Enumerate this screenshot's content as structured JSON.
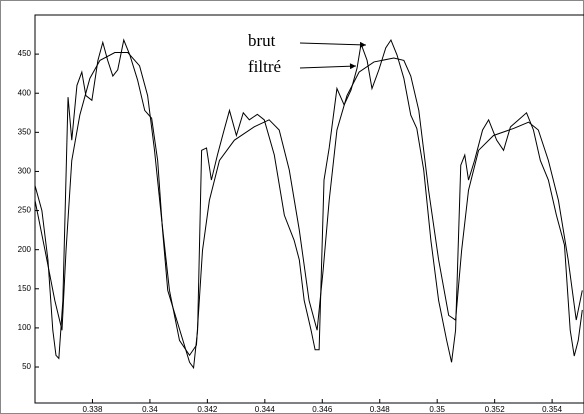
{
  "chart_data": {
    "type": "line",
    "xlim": [
      0.336,
      0.35511
    ],
    "ylim": [
      4,
      500
    ],
    "xticks": [
      0.338,
      0.34,
      0.342,
      0.344,
      0.346,
      0.348,
      0.35,
      0.352,
      0.354
    ],
    "yticks": [
      50,
      100,
      150,
      200,
      250,
      300,
      350,
      400,
      450
    ],
    "series": [
      {
        "name": "brut",
        "color": "#000000",
        "x": [
          0.336,
          0.33624,
          0.33645,
          0.33662,
          0.33673,
          0.33683,
          0.33697,
          0.33715,
          0.33728,
          0.33746,
          0.33763,
          0.33777,
          0.33798,
          0.33819,
          0.33836,
          0.33853,
          0.33871,
          0.33888,
          0.33909,
          0.3393,
          0.33957,
          0.33982,
          0.34006,
          0.34027,
          0.34044,
          0.34062,
          0.34138,
          0.34152,
          0.34166,
          0.3418,
          0.34197,
          0.34214,
          0.34235,
          0.34256,
          0.34277,
          0.34301,
          0.34325,
          0.34346,
          0.34374,
          0.34398,
          0.34433,
          0.34468,
          0.34502,
          0.3452,
          0.34537,
          0.34561,
          0.34575,
          0.34589,
          0.34606,
          0.34624,
          0.34651,
          0.34676,
          0.347,
          0.34721,
          0.34735,
          0.34756,
          0.34773,
          0.34797,
          0.34821,
          0.34839,
          0.3486,
          0.34884,
          0.34908,
          0.34929,
          0.34953,
          0.34978,
          0.35005,
          0.35033,
          0.3505,
          0.35064,
          0.35082,
          0.35096,
          0.35109,
          0.3513,
          0.35158,
          0.35179,
          0.35207,
          0.35231,
          0.35255,
          0.35283,
          0.35311,
          0.35335,
          0.35359,
          0.35387,
          0.35415,
          0.35443,
          0.35463,
          0.35477,
          0.35491,
          0.35505
        ],
        "values": [
          282,
          250,
          187,
          97,
          65,
          61,
          135,
          395,
          340,
          410,
          427,
          397,
          391,
          442,
          465,
          442,
          422,
          430,
          468,
          449,
          417,
          378,
          368,
          314,
          225,
          148,
          56,
          49,
          97,
          327,
          330,
          289,
          321,
          350,
          378,
          346,
          375,
          366,
          373,
          366,
          321,
          244,
          212,
          187,
          135,
          97,
          72,
          72,
          289,
          330,
          406,
          385,
          404,
          432,
          463,
          442,
          406,
          430,
          458,
          468,
          449,
          419,
          372,
          355,
          302,
          212,
          135,
          84,
          56,
          97,
          308,
          321,
          289,
          314,
          353,
          366,
          340,
          327,
          357,
          366,
          375,
          353,
          314,
          289,
          244,
          206,
          97,
          64,
          84,
          123
        ]
      },
      {
        "name": "filtré",
        "color": "#000000",
        "x": [
          0.336,
          0.33635,
          0.33669,
          0.33694,
          0.33708,
          0.33728,
          0.33756,
          0.33791,
          0.33826,
          0.33878,
          0.33923,
          0.33964,
          0.33992,
          0.34016,
          0.34041,
          0.34068,
          0.34103,
          0.34138,
          0.34162,
          0.34183,
          0.34207,
          0.34242,
          0.34294,
          0.34363,
          0.34415,
          0.3445,
          0.34485,
          0.3452,
          0.34554,
          0.34582,
          0.34603,
          0.34624,
          0.34651,
          0.34686,
          0.34728,
          0.3478,
          0.34849,
          0.34884,
          0.34908,
          0.34936,
          0.3497,
          0.35005,
          0.3504,
          0.35064,
          0.35085,
          0.35109,
          0.35144,
          0.35196,
          0.35266,
          0.35318,
          0.35352,
          0.35387,
          0.35422,
          0.35456,
          0.35484,
          0.35505
        ],
        "values": [
          263,
          199,
          135,
          97,
          199,
          314,
          372,
          419,
          442,
          452,
          452,
          435,
          397,
          327,
          238,
          148,
          84,
          65,
          78,
          199,
          263,
          314,
          340,
          357,
          366,
          353,
          302,
          225,
          135,
          97,
          174,
          263,
          353,
          397,
          427,
          440,
          445,
          442,
          422,
          378,
          276,
          187,
          116,
          110,
          199,
          276,
          327,
          346,
          355,
          363,
          353,
          314,
          263,
          187,
          110,
          148
        ]
      }
    ]
  }
}
